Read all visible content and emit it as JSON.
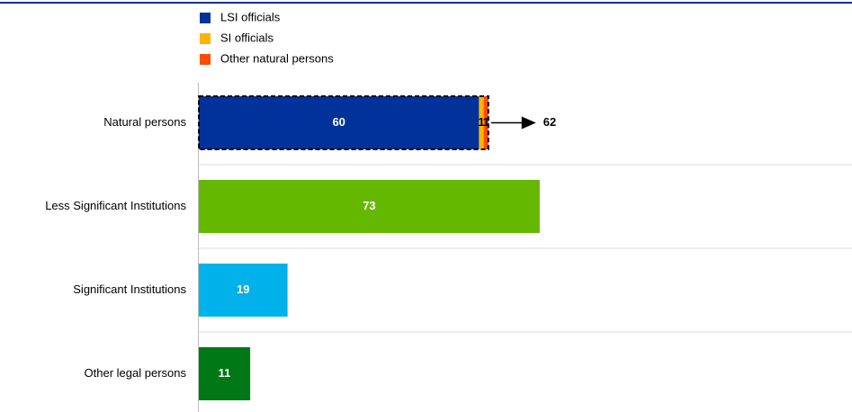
{
  "chart_data": {
    "type": "bar",
    "orientation": "horizontal",
    "categories": [
      "Natural persons",
      "Less Significant Institutions",
      "Significant Institutions",
      "Other legal persons"
    ],
    "series": [
      {
        "name": "LSI officials",
        "color": "#003299",
        "values": [
          60,
          null,
          null,
          null
        ]
      },
      {
        "name": "SI officials",
        "color": "#ffb400",
        "values": [
          1,
          null,
          null,
          null
        ]
      },
      {
        "name": "Other natural persons",
        "color": "#ff4b00",
        "values": [
          1,
          null,
          null,
          null
        ]
      }
    ],
    "values": [
      null,
      73,
      19,
      11
    ],
    "colors": [
      null,
      "#65b800",
      "#00b1ea",
      "#007816"
    ],
    "totals": [
      62,
      null,
      null,
      null
    ],
    "legend": "top-left",
    "grid": true
  }
}
